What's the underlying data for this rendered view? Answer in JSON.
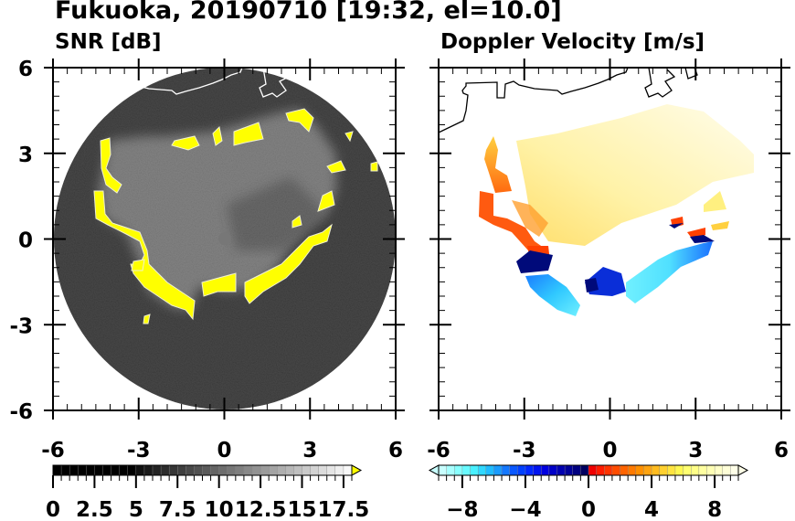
{
  "title": "Fukuoka, 20190710 [19:32, el=10.0]",
  "chart_data": [
    {
      "type": "heatmap",
      "title": "SNR [dB]",
      "xlabel": "",
      "ylabel": "",
      "xlim": [
        -6,
        6
      ],
      "ylim": [
        -6,
        6
      ],
      "xticks": [
        "-6",
        "-3",
        "0",
        "3",
        "6"
      ],
      "yticks": [
        "6",
        "3",
        "0",
        "-3",
        "-6"
      ],
      "colorbar": {
        "range": [
          0,
          18
        ],
        "step": 0.5,
        "tick_labels": [
          "0",
          "2.5",
          "5",
          "7.5",
          "10",
          "12.5",
          "15",
          "17.5"
        ],
        "tick_values": [
          0,
          2.5,
          5,
          7.5,
          10,
          12.5,
          15,
          17.5
        ],
        "over_color": "#ffff00",
        "extend": "max"
      },
      "coastline_color": "#ffffff",
      "background_color": "#000000"
    },
    {
      "type": "heatmap",
      "title": "Doppler Velocity [m/s]",
      "xlabel": "",
      "ylabel": "",
      "xlim": [
        -6,
        6
      ],
      "ylim": [
        -6,
        6
      ],
      "xticks": [
        "-6",
        "-3",
        "0",
        "3",
        "6"
      ],
      "yticks": [
        "6",
        "3",
        "0",
        "-3",
        "-6"
      ],
      "colorbar": {
        "range": [
          -9.5,
          9.5
        ],
        "step": 0.5,
        "tick_labels": [
          "−8",
          "−4",
          "0",
          "4",
          "8"
        ],
        "tick_values": [
          -8,
          -4,
          0,
          4,
          8
        ],
        "extend": "both",
        "colors": [
          "#c8ffff",
          "#a8ffff",
          "#88ffff",
          "#68faff",
          "#48f0ff",
          "#30d8ff",
          "#20bcff",
          "#1a9cff",
          "#1478ff",
          "#0a58ff",
          "#0040ff",
          "#0028ff",
          "#0014f0",
          "#0000e0",
          "#0000c8",
          "#0000b0",
          "#000098",
          "#000080",
          "#000060",
          "#f00000",
          "#ff1c00",
          "#ff3400",
          "#ff4c00",
          "#ff6400",
          "#ff7a00",
          "#ff9000",
          "#ffa410",
          "#ffbc20",
          "#ffd030",
          "#ffe440",
          "#fff850",
          "#ffff70",
          "#ffff88",
          "#ffffa0",
          "#ffffb4",
          "#ffffc8",
          "#ffffd8",
          "#ffffe8"
        ]
      },
      "coastline_color": "#000000"
    }
  ]
}
